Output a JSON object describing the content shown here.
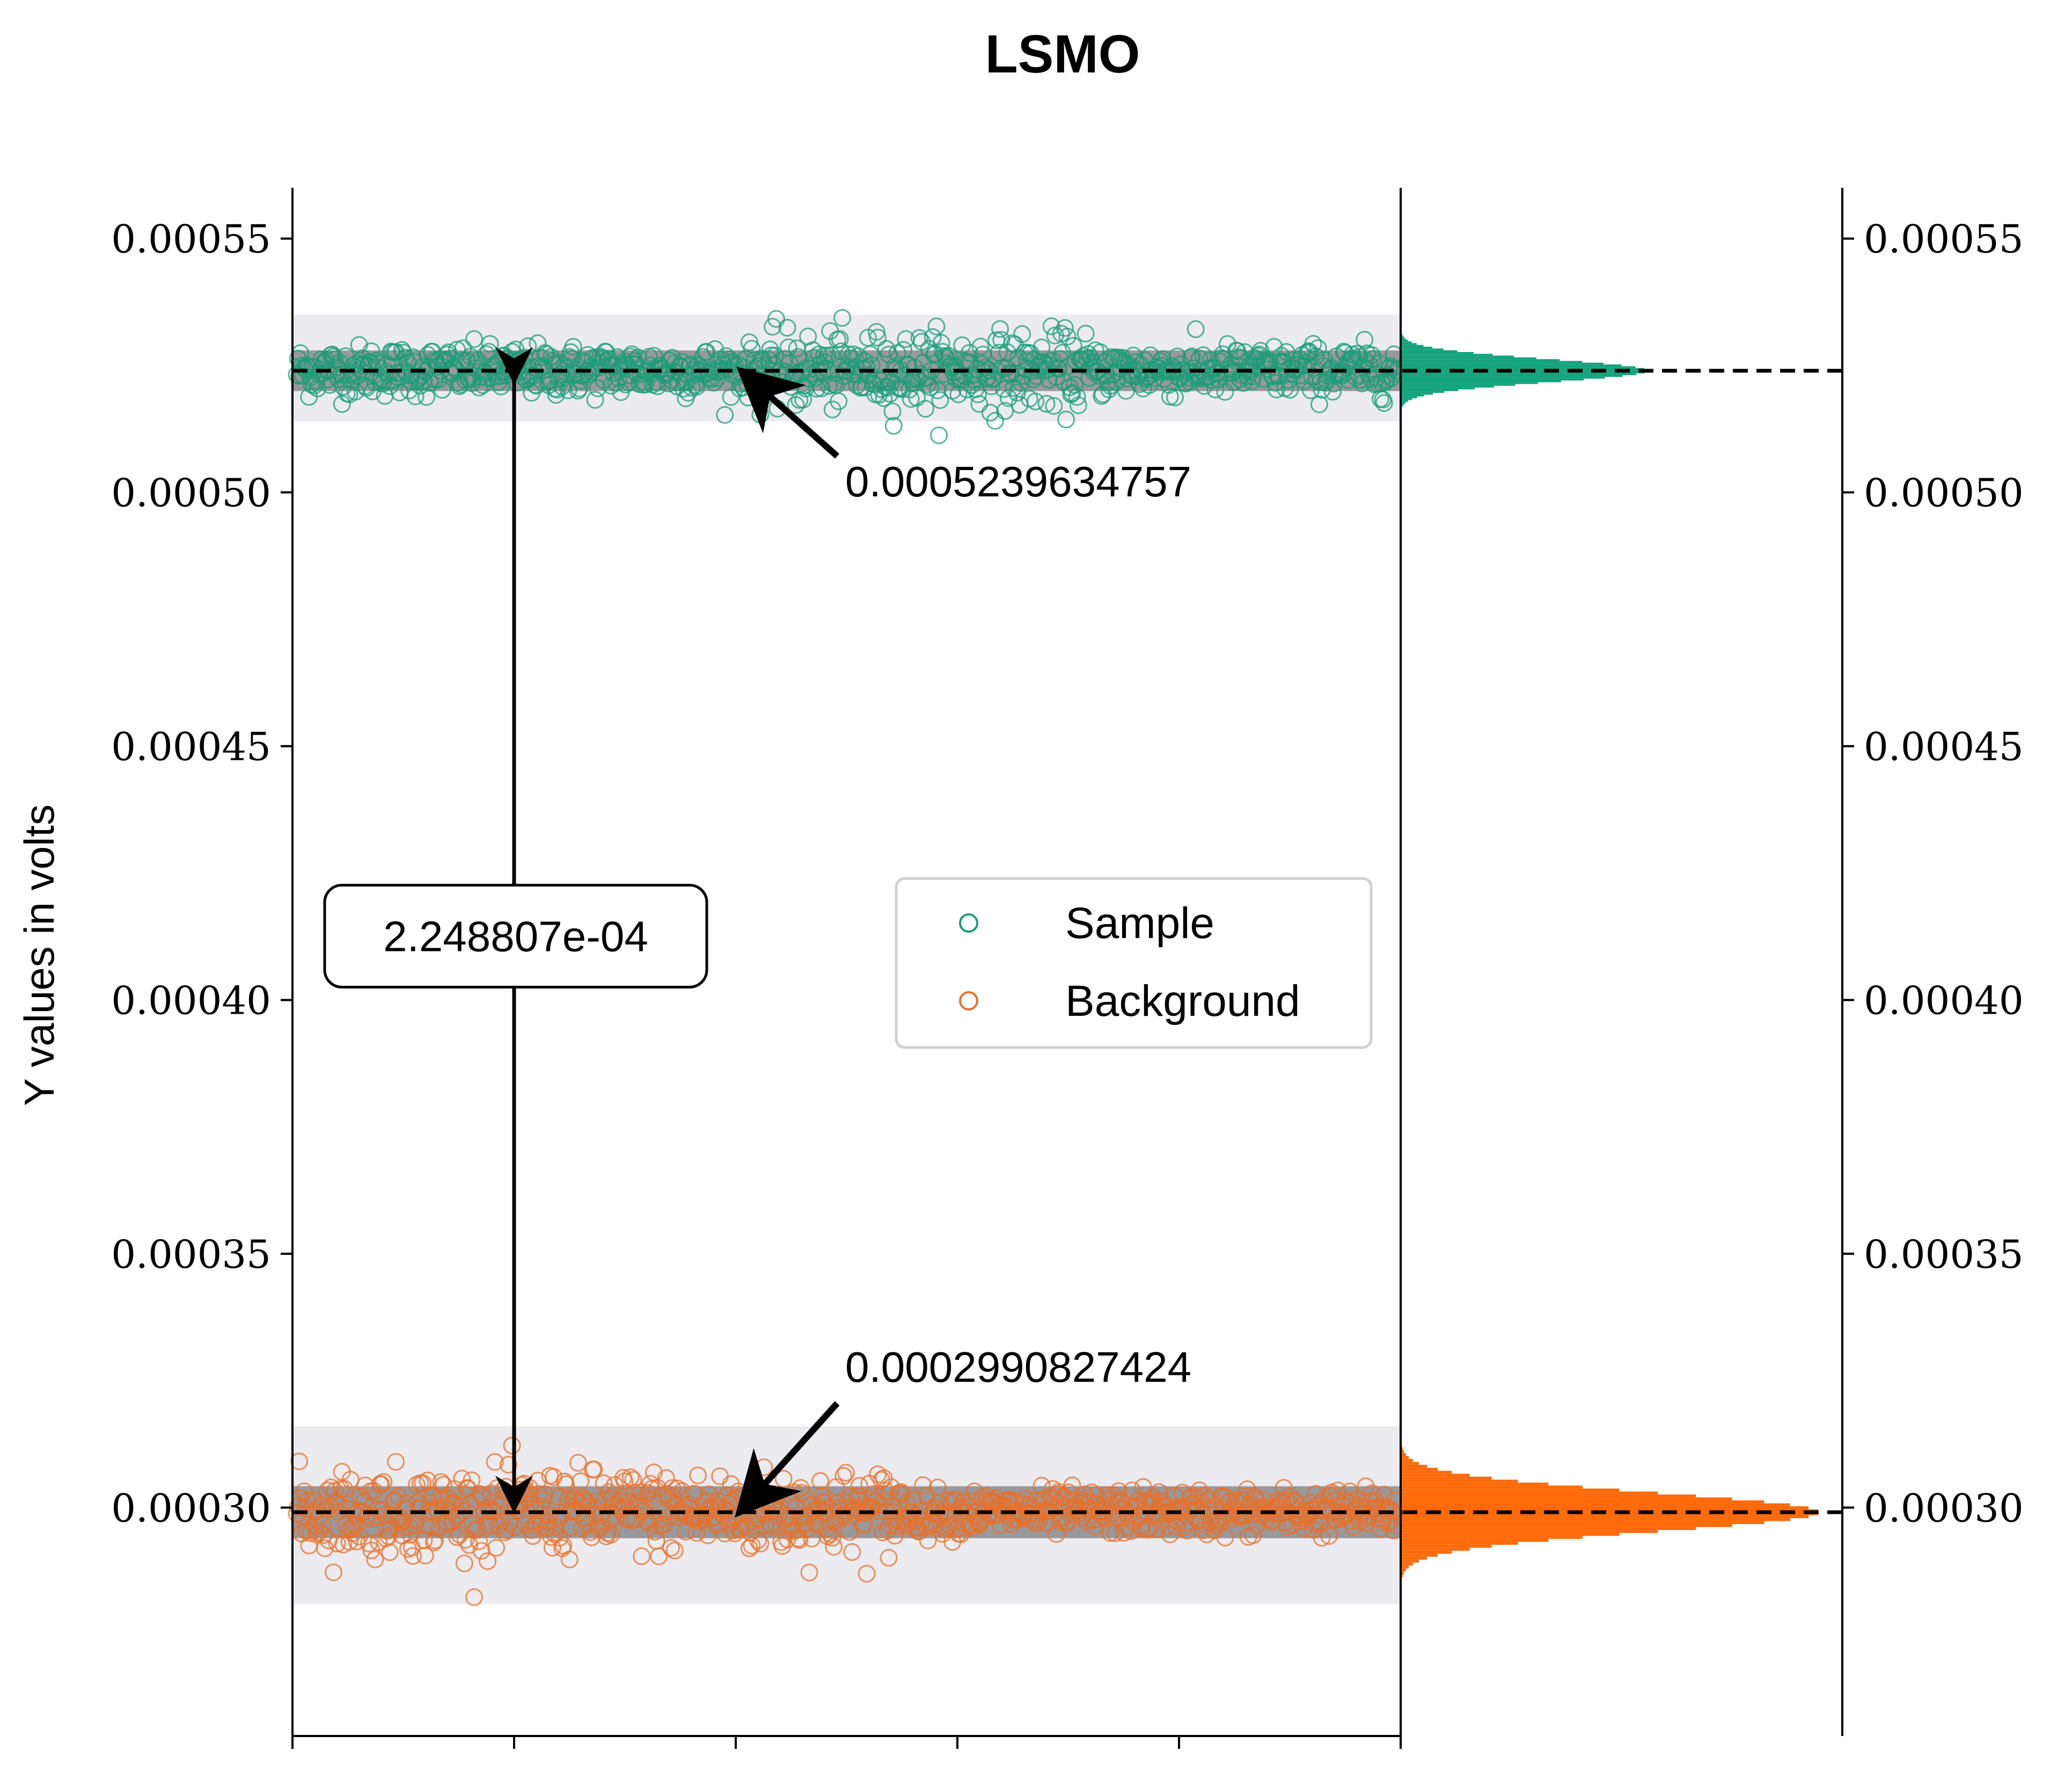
{
  "chart_data": {
    "type": "scatter",
    "title": "LSMO",
    "ylabel": "Y values in volts",
    "xlabel": "",
    "ylim": [
      0.000255,
      0.00056
    ],
    "yticks": [
      "0.00030",
      "0.00035",
      "0.00040",
      "0.00045",
      "0.00050",
      "0.00055"
    ],
    "ytick_values": [
      0.0003,
      0.00035,
      0.0004,
      0.00045,
      0.0005,
      0.00055
    ],
    "x_tick_count": 6,
    "grid": false,
    "legend_position": "center-right",
    "colors": {
      "sample": "#1b9e77",
      "background": "#e8702a",
      "sample_hist": "#12a37a",
      "background_hist": "#ff6a0a",
      "band": "#ebebf0"
    },
    "series": [
      {
        "name": "Sample",
        "mean": 0.0005239634757,
        "spread": 2.5e-06,
        "band": [
          0.000514,
          0.000535
        ]
      },
      {
        "name": "Background",
        "mean": 0.0002990827424,
        "spread": 3.2e-06,
        "band": [
          0.000281,
          0.000316
        ]
      }
    ],
    "annotations": {
      "sample_mean": "0.0005239634757",
      "background_mean": "0.0002990827424",
      "difference": "2.248807e-04"
    }
  }
}
